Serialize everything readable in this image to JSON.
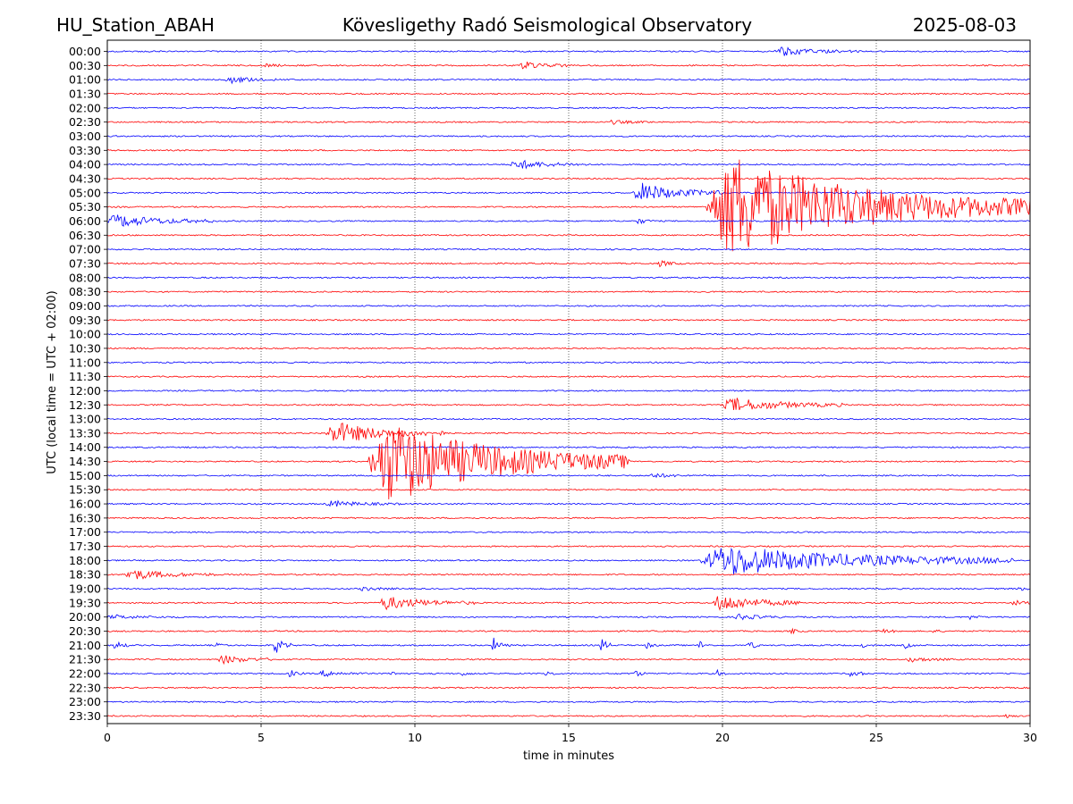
{
  "header": {
    "station": "HU_Station_ABAH",
    "observatory": "Kövesligethy Radó Seismological Observatory",
    "date": "2025-08-03"
  },
  "chart_data": {
    "type": "line",
    "subtype": "helicorder",
    "xlabel": "time in minutes",
    "ylabel": "UTC (local time = UTC + 02:00)",
    "xlim": [
      0,
      30
    ],
    "xticks": [
      0,
      5,
      10,
      15,
      20,
      25,
      30
    ],
    "grid": "vertical dotted at every 5 minutes",
    "colors": {
      "even_rows": "#0000ff",
      "odd_rows": "#ff0000"
    },
    "rows": [
      "00:00",
      "00:30",
      "01:00",
      "01:30",
      "02:00",
      "02:30",
      "03:00",
      "03:30",
      "04:00",
      "04:30",
      "05:00",
      "05:30",
      "06:00",
      "06:30",
      "07:00",
      "07:30",
      "08:00",
      "08:30",
      "09:00",
      "09:30",
      "10:00",
      "10:30",
      "11:00",
      "11:30",
      "12:00",
      "12:30",
      "13:00",
      "13:30",
      "14:00",
      "14:30",
      "15:00",
      "15:30",
      "16:00",
      "16:30",
      "17:00",
      "17:30",
      "18:00",
      "18:30",
      "19:00",
      "19:30",
      "20:00",
      "20:30",
      "21:00",
      "21:30",
      "22:00",
      "22:30",
      "23:00",
      "23:30"
    ],
    "events": [
      {
        "row": "00:00",
        "start_min": 21.7,
        "end_min": 24.5,
        "amplitude": 0.35
      },
      {
        "row": "00:30",
        "start_min": 5.1,
        "end_min": 6.0,
        "amplitude": 0.2
      },
      {
        "row": "00:30",
        "start_min": 13.4,
        "end_min": 15.0,
        "amplitude": 0.35
      },
      {
        "row": "01:00",
        "start_min": 3.8,
        "end_min": 5.5,
        "amplitude": 0.3
      },
      {
        "row": "02:30",
        "start_min": 16.3,
        "end_min": 17.8,
        "amplitude": 0.15
      },
      {
        "row": "04:00",
        "start_min": 13.1,
        "end_min": 15.6,
        "amplitude": 0.4
      },
      {
        "row": "05:00",
        "start_min": 17.1,
        "end_min": 20.0,
        "amplitude": 0.85
      },
      {
        "row": "05:30",
        "start_min": 19.5,
        "end_min": 30.0,
        "amplitude": 4.5
      },
      {
        "row": "06:00",
        "start_min": 0.0,
        "end_min": 3.5,
        "amplitude": 0.55
      },
      {
        "row": "06:00",
        "start_min": 17.2,
        "end_min": 17.8,
        "amplitude": 0.25
      },
      {
        "row": "07:30",
        "start_min": 17.9,
        "end_min": 18.7,
        "amplitude": 0.25
      },
      {
        "row": "12:30",
        "start_min": 20.0,
        "end_min": 24.0,
        "amplitude": 0.6
      },
      {
        "row": "13:30",
        "start_min": 7.1,
        "end_min": 11.0,
        "amplitude": 0.95
      },
      {
        "row": "14:30",
        "start_min": 8.5,
        "end_min": 17.0,
        "amplitude": 3.6
      },
      {
        "row": "15:00",
        "start_min": 17.6,
        "end_min": 19.0,
        "amplitude": 0.2
      },
      {
        "row": "16:00",
        "start_min": 7.1,
        "end_min": 9.5,
        "amplitude": 0.25
      },
      {
        "row": "18:00",
        "start_min": 19.3,
        "end_min": 29.5,
        "amplitude": 1.3
      },
      {
        "row": "18:30",
        "start_min": 0.5,
        "end_min": 3.5,
        "amplitude": 0.45
      },
      {
        "row": "19:00",
        "start_min": 8.2,
        "end_min": 9.5,
        "amplitude": 0.15
      },
      {
        "row": "19:00",
        "start_min": 29.6,
        "end_min": 30.0,
        "amplitude": 0.2
      },
      {
        "row": "19:30",
        "start_min": 8.8,
        "end_min": 12.0,
        "amplitude": 0.55
      },
      {
        "row": "19:30",
        "start_min": 19.7,
        "end_min": 22.5,
        "amplitude": 0.75
      },
      {
        "row": "19:30",
        "start_min": 29.4,
        "end_min": 30.0,
        "amplitude": 0.3
      },
      {
        "row": "20:00",
        "start_min": 0.0,
        "end_min": 2.5,
        "amplitude": 0.15
      },
      {
        "row": "20:00",
        "start_min": 20.4,
        "end_min": 22.0,
        "amplitude": 0.25
      },
      {
        "row": "20:00",
        "start_min": 28.0,
        "end_min": 28.5,
        "amplitude": 0.2
      },
      {
        "row": "20:30",
        "start_min": 22.2,
        "end_min": 22.6,
        "amplitude": 0.25
      },
      {
        "row": "20:30",
        "start_min": 25.2,
        "end_min": 25.6,
        "amplitude": 0.3
      },
      {
        "row": "20:30",
        "start_min": 26.7,
        "end_min": 27.2,
        "amplitude": 0.2
      },
      {
        "row": "21:00",
        "start_min": 0.2,
        "end_min": 0.7,
        "amplitude": 0.45
      },
      {
        "row": "21:00",
        "start_min": 3.5,
        "end_min": 4.0,
        "amplitude": 0.15
      },
      {
        "row": "21:00",
        "start_min": 5.4,
        "end_min": 6.0,
        "amplitude": 0.75
      },
      {
        "row": "21:00",
        "start_min": 12.5,
        "end_min": 13.1,
        "amplitude": 0.65
      },
      {
        "row": "21:00",
        "start_min": 16.0,
        "end_min": 16.5,
        "amplitude": 0.6
      },
      {
        "row": "21:00",
        "start_min": 17.5,
        "end_min": 17.9,
        "amplitude": 0.3
      },
      {
        "row": "21:00",
        "start_min": 19.2,
        "end_min": 19.6,
        "amplitude": 0.45
      },
      {
        "row": "21:00",
        "start_min": 20.8,
        "end_min": 21.2,
        "amplitude": 0.5
      },
      {
        "row": "21:00",
        "start_min": 24.5,
        "end_min": 24.9,
        "amplitude": 0.2
      },
      {
        "row": "21:00",
        "start_min": 25.9,
        "end_min": 26.3,
        "amplitude": 0.25
      },
      {
        "row": "21:30",
        "start_min": 3.6,
        "end_min": 5.5,
        "amplitude": 0.35
      },
      {
        "row": "21:30",
        "start_min": 26.0,
        "end_min": 27.5,
        "amplitude": 0.2
      },
      {
        "row": "22:00",
        "start_min": 5.9,
        "end_min": 6.4,
        "amplitude": 0.3
      },
      {
        "row": "22:00",
        "start_min": 6.9,
        "end_min": 8.4,
        "amplitude": 0.25
      },
      {
        "row": "22:00",
        "start_min": 9.2,
        "end_min": 9.6,
        "amplitude": 0.2
      },
      {
        "row": "22:00",
        "start_min": 11.5,
        "end_min": 11.9,
        "amplitude": 0.2
      },
      {
        "row": "22:00",
        "start_min": 14.2,
        "end_min": 14.6,
        "amplitude": 0.35
      },
      {
        "row": "22:00",
        "start_min": 17.1,
        "end_min": 17.5,
        "amplitude": 0.35
      },
      {
        "row": "22:00",
        "start_min": 19.8,
        "end_min": 20.2,
        "amplitude": 0.25
      },
      {
        "row": "22:00",
        "start_min": 24.1,
        "end_min": 24.6,
        "amplitude": 0.5
      },
      {
        "row": "23:30",
        "start_min": 29.2,
        "end_min": 29.6,
        "amplitude": 0.2
      }
    ]
  }
}
